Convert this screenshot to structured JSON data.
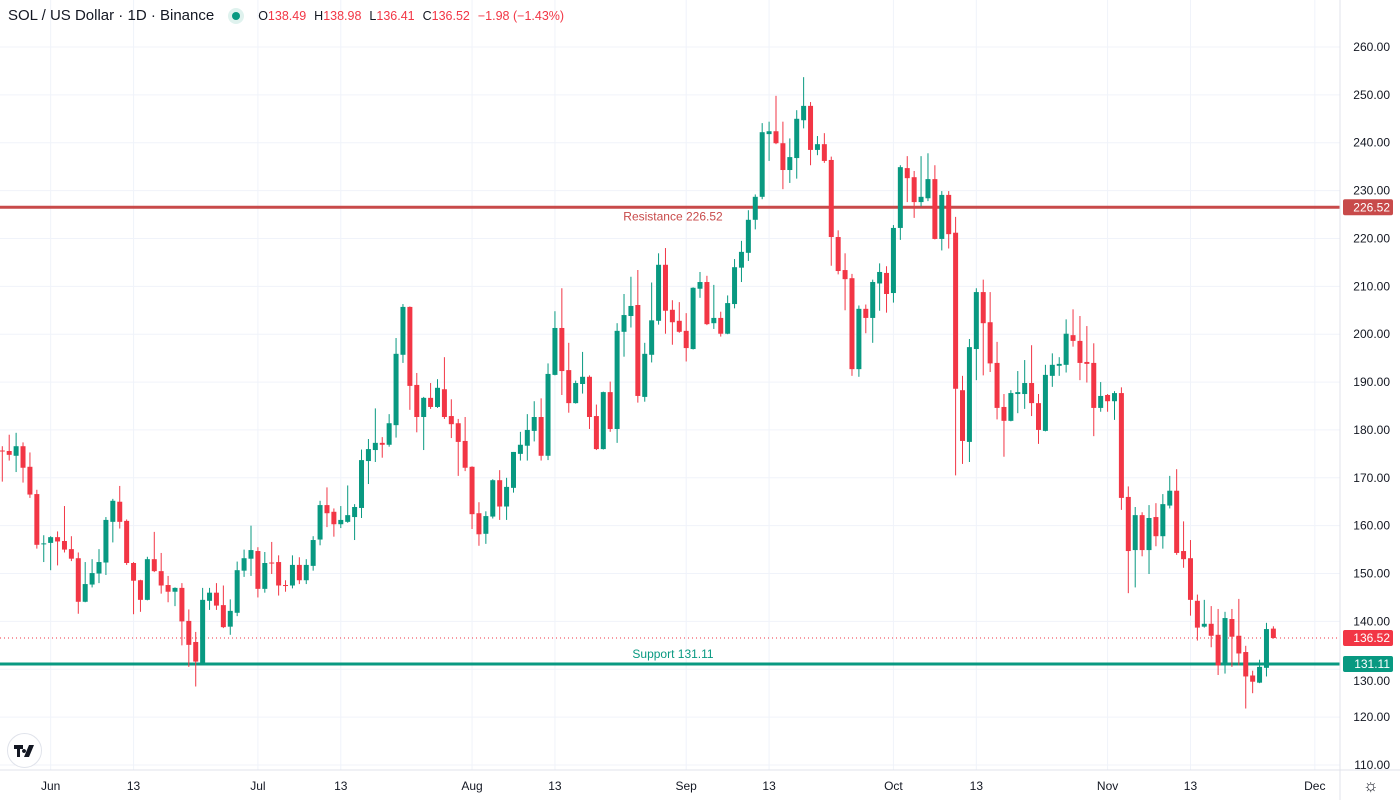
{
  "header": {
    "title": "SOL / US Dollar · 1D · Binance",
    "open_key": "O",
    "open": "138.49",
    "high_key": "H",
    "high": "138.98",
    "low_key": "L",
    "low": "136.41",
    "close_key": "C",
    "close": "136.52",
    "change": "−1.98 (−1.43%)"
  },
  "logo_text": "TV",
  "colors": {
    "up": "#089981",
    "down": "#f23645",
    "resistance": "#c84a4a",
    "support": "#089981",
    "grid": "#f0f3fa",
    "text": "#131722"
  },
  "chart_data": {
    "type": "candlestick",
    "title": "SOL / US Dollar · 1D · Binance",
    "ylim": [
      110,
      260
    ],
    "y_ticks": [
      "110.00",
      "120.00",
      "130.00",
      "140.00",
      "150.00",
      "160.00",
      "170.00",
      "180.00",
      "190.00",
      "200.00",
      "210.00",
      "220.00",
      "230.00",
      "240.00",
      "250.00",
      "260.00"
    ],
    "x_ticks": [
      {
        "label": "Jun",
        "index": 7
      },
      {
        "label": "13",
        "index": 19
      },
      {
        "label": "Jul",
        "index": 37
      },
      {
        "label": "13",
        "index": 49
      },
      {
        "label": "Aug",
        "index": 68
      },
      {
        "label": "13",
        "index": 80
      },
      {
        "label": "Sep",
        "index": 99
      },
      {
        "label": "13",
        "index": 111
      },
      {
        "label": "Oct",
        "index": 129
      },
      {
        "label": "13",
        "index": 141
      },
      {
        "label": "Nov",
        "index": 160
      },
      {
        "label": "13",
        "index": 172
      },
      {
        "label": "Dec",
        "index": 190
      }
    ],
    "ohlc_fields": [
      "open",
      "high",
      "low",
      "close"
    ],
    "ohlc": [
      [
        175.7,
        176.6,
        169.2,
        175.6
      ],
      [
        175.6,
        179.0,
        173.6,
        174.8
      ],
      [
        174.6,
        179.4,
        171.2,
        176.6
      ],
      [
        176.6,
        177.4,
        169.0,
        172.1
      ],
      [
        172.3,
        175.3,
        165.8,
        166.5
      ],
      [
        166.6,
        167.5,
        155.2,
        156.0
      ],
      [
        156.2,
        158.0,
        152.4,
        156.3
      ],
      [
        156.4,
        157.8,
        150.7,
        157.6
      ],
      [
        157.6,
        158.8,
        151.7,
        156.7
      ],
      [
        156.8,
        164.1,
        154.4,
        155.0
      ],
      [
        155.1,
        157.8,
        152.6,
        153.1
      ],
      [
        153.2,
        154.4,
        141.6,
        144.1
      ],
      [
        144.1,
        152.4,
        144.0,
        147.8
      ],
      [
        147.7,
        153.0,
        147.1,
        150.1
      ],
      [
        150.0,
        155.1,
        148.0,
        152.4
      ],
      [
        152.3,
        161.8,
        149.7,
        161.2
      ],
      [
        160.8,
        165.6,
        156.5,
        165.2
      ],
      [
        165.0,
        168.3,
        159.4,
        160.8
      ],
      [
        161.0,
        161.3,
        151.8,
        152.2
      ],
      [
        152.2,
        152.4,
        141.5,
        148.5
      ],
      [
        148.6,
        148.7,
        142.0,
        144.5
      ],
      [
        144.5,
        153.5,
        144.4,
        153.0
      ],
      [
        153.0,
        158.7,
        150.3,
        150.5
      ],
      [
        150.5,
        154.3,
        145.8,
        147.5
      ],
      [
        147.6,
        149.5,
        144.0,
        146.2
      ],
      [
        146.2,
        147.1,
        143.2,
        147.0
      ],
      [
        147.0,
        148.0,
        135.0,
        140.0
      ],
      [
        140.1,
        142.5,
        130.5,
        135.1
      ],
      [
        135.7,
        137.8,
        126.4,
        131.6
      ],
      [
        131.3,
        147.0,
        131.0,
        144.5
      ],
      [
        144.3,
        147.0,
        142.4,
        146.0
      ],
      [
        146.0,
        148.0,
        142.4,
        143.3
      ],
      [
        143.4,
        147.5,
        138.6,
        138.8
      ],
      [
        138.9,
        144.6,
        137.2,
        142.2
      ],
      [
        141.8,
        152.5,
        141.1,
        150.7
      ],
      [
        150.6,
        155.0,
        149.3,
        153.2
      ],
      [
        153.1,
        160.0,
        149.5,
        154.9
      ],
      [
        154.7,
        155.5,
        145.0,
        146.8
      ],
      [
        146.8,
        154.5,
        146.0,
        152.2
      ],
      [
        152.3,
        156.6,
        149.9,
        152.2
      ],
      [
        152.4,
        153.8,
        145.4,
        147.5
      ],
      [
        147.6,
        148.6,
        146.2,
        147.5
      ],
      [
        147.5,
        153.8,
        146.9,
        151.8
      ],
      [
        151.8,
        153.4,
        147.8,
        148.6
      ],
      [
        148.6,
        153.0,
        147.8,
        151.8
      ],
      [
        151.6,
        157.8,
        150.6,
        157.0
      ],
      [
        157.1,
        165.2,
        155.9,
        164.3
      ],
      [
        164.3,
        168.0,
        159.7,
        162.6
      ],
      [
        162.9,
        163.6,
        157.7,
        160.3
      ],
      [
        160.3,
        164.1,
        159.5,
        161.2
      ],
      [
        160.8,
        168.4,
        160.6,
        162.2
      ],
      [
        161.8,
        164.5,
        157.0,
        163.9
      ],
      [
        163.7,
        175.9,
        161.6,
        173.7
      ],
      [
        173.5,
        178.1,
        168.7,
        176.0
      ],
      [
        175.8,
        184.5,
        173.3,
        177.3
      ],
      [
        177.3,
        178.5,
        174.2,
        176.9
      ],
      [
        176.9,
        183.3,
        176.5,
        181.4
      ],
      [
        181.0,
        199.2,
        178.4,
        195.9
      ],
      [
        195.7,
        206.3,
        194.0,
        205.7
      ],
      [
        205.7,
        205.8,
        184.2,
        189.2
      ],
      [
        189.4,
        191.9,
        179.5,
        182.7
      ],
      [
        182.7,
        186.9,
        175.8,
        186.7
      ],
      [
        186.7,
        189.8,
        184.4,
        184.8
      ],
      [
        184.8,
        190.6,
        184.6,
        188.8
      ],
      [
        188.5,
        195.2,
        182.3,
        182.7
      ],
      [
        182.9,
        186.4,
        178.3,
        181.2
      ],
      [
        181.4,
        182.3,
        170.4,
        177.5
      ],
      [
        177.7,
        182.7,
        171.4,
        172.1
      ],
      [
        172.3,
        172.4,
        159.3,
        162.4
      ],
      [
        162.6,
        164.9,
        155.8,
        158.2
      ],
      [
        158.3,
        163.0,
        156.2,
        162.0
      ],
      [
        161.9,
        169.7,
        161.5,
        169.5
      ],
      [
        169.5,
        171.6,
        161.2,
        164.0
      ],
      [
        164.0,
        170.0,
        161.2,
        168.1
      ],
      [
        167.9,
        175.4,
        166.9,
        175.4
      ],
      [
        175.0,
        179.6,
        173.6,
        176.9
      ],
      [
        176.7,
        183.3,
        173.6,
        180.0
      ],
      [
        179.8,
        186.0,
        177.6,
        182.7
      ],
      [
        182.7,
        186.6,
        173.6,
        174.6
      ],
      [
        174.6,
        193.9,
        173.7,
        191.7
      ],
      [
        191.5,
        204.8,
        191.4,
        201.3
      ],
      [
        201.3,
        209.6,
        187.3,
        192.3
      ],
      [
        192.5,
        198.2,
        183.6,
        185.6
      ],
      [
        185.6,
        190.3,
        185.5,
        189.8
      ],
      [
        189.6,
        196.3,
        187.6,
        191.1
      ],
      [
        191.1,
        191.4,
        180.2,
        182.7
      ],
      [
        182.9,
        185.3,
        175.8,
        176.0
      ],
      [
        176.0,
        188.0,
        175.9,
        187.9
      ],
      [
        187.9,
        190.1,
        179.6,
        180.2
      ],
      [
        180.2,
        202.3,
        177.3,
        200.7
      ],
      [
        200.5,
        208.4,
        195.3,
        204.0
      ],
      [
        203.8,
        212.0,
        201.4,
        205.9
      ],
      [
        206.1,
        213.4,
        185.7,
        187.1
      ],
      [
        186.9,
        198.2,
        185.9,
        195.9
      ],
      [
        195.7,
        210.8,
        194.1,
        202.9
      ],
      [
        202.8,
        216.9,
        202.0,
        214.5
      ],
      [
        214.5,
        218.0,
        200.1,
        204.9
      ],
      [
        205.1,
        207.1,
        197.8,
        202.5
      ],
      [
        202.8,
        206.7,
        200.3,
        200.5
      ],
      [
        200.7,
        204.4,
        194.3,
        197.1
      ],
      [
        196.9,
        209.8,
        196.8,
        209.7
      ],
      [
        209.5,
        213.0,
        207.6,
        210.9
      ],
      [
        210.9,
        212.2,
        201.9,
        202.1
      ],
      [
        202.3,
        210.3,
        201.1,
        203.4
      ],
      [
        203.4,
        204.7,
        199.5,
        200.1
      ],
      [
        200.1,
        208.1,
        200.0,
        206.5
      ],
      [
        206.3,
        215.7,
        205.4,
        214.0
      ],
      [
        213.9,
        219.5,
        210.9,
        217.2
      ],
      [
        217.0,
        225.9,
        215.3,
        223.9
      ],
      [
        223.9,
        229.2,
        221.9,
        228.7
      ],
      [
        228.7,
        244.1,
        228.2,
        242.2
      ],
      [
        241.8,
        244.4,
        236.2,
        242.4
      ],
      [
        242.4,
        249.8,
        239.7,
        239.9
      ],
      [
        239.9,
        244.4,
        230.3,
        234.3
      ],
      [
        234.3,
        240.9,
        231.6,
        237.0
      ],
      [
        236.8,
        246.8,
        232.5,
        245.0
      ],
      [
        244.7,
        253.7,
        243.0,
        247.7
      ],
      [
        247.7,
        248.5,
        235.3,
        238.5
      ],
      [
        238.5,
        241.4,
        237.4,
        239.7
      ],
      [
        239.7,
        242.0,
        235.8,
        236.2
      ],
      [
        236.4,
        237.1,
        214.3,
        220.3
      ],
      [
        220.3,
        221.7,
        212.5,
        213.2
      ],
      [
        213.4,
        216.9,
        205.0,
        211.5
      ],
      [
        211.7,
        212.6,
        191.3,
        192.7
      ],
      [
        192.7,
        206.0,
        191.1,
        205.3
      ],
      [
        205.3,
        206.2,
        200.2,
        203.4
      ],
      [
        203.4,
        211.4,
        198.2,
        210.9
      ],
      [
        210.6,
        214.8,
        204.9,
        213.0
      ],
      [
        212.8,
        214.2,
        204.5,
        208.4
      ],
      [
        208.6,
        222.8,
        206.6,
        222.2
      ],
      [
        222.2,
        235.3,
        219.7,
        234.9
      ],
      [
        234.7,
        237.2,
        227.6,
        232.6
      ],
      [
        232.8,
        234.1,
        224.3,
        227.6
      ],
      [
        227.6,
        237.2,
        226.7,
        228.7
      ],
      [
        228.4,
        237.8,
        227.8,
        232.4
      ],
      [
        232.4,
        235.3,
        219.8,
        219.9
      ],
      [
        219.9,
        229.9,
        217.5,
        229.1
      ],
      [
        229.1,
        229.9,
        217.9,
        220.9
      ],
      [
        221.2,
        224.5,
        170.5,
        188.6
      ],
      [
        188.3,
        191.3,
        172.9,
        177.7
      ],
      [
        177.5,
        199.0,
        173.3,
        197.3
      ],
      [
        196.9,
        209.6,
        190.4,
        208.8
      ],
      [
        208.8,
        211.4,
        191.4,
        202.3
      ],
      [
        202.5,
        208.8,
        192.1,
        193.9
      ],
      [
        194.0,
        198.4,
        182.2,
        184.6
      ],
      [
        184.8,
        187.5,
        174.4,
        181.9
      ],
      [
        181.9,
        188.3,
        181.8,
        187.7
      ],
      [
        187.5,
        192.3,
        183.5,
        187.9
      ],
      [
        187.5,
        194.6,
        184.4,
        189.8
      ],
      [
        189.8,
        197.7,
        182.9,
        185.6
      ],
      [
        185.6,
        187.5,
        177.1,
        180.0
      ],
      [
        179.8,
        193.6,
        179.7,
        191.5
      ],
      [
        191.3,
        196.0,
        189.0,
        193.6
      ],
      [
        193.4,
        195.2,
        191.3,
        193.8
      ],
      [
        193.6,
        203.1,
        192.0,
        200.1
      ],
      [
        199.8,
        205.2,
        197.4,
        198.6
      ],
      [
        198.6,
        203.8,
        190.4,
        194.0
      ],
      [
        194.2,
        201.7,
        189.9,
        193.8
      ],
      [
        194.0,
        198.1,
        178.7,
        184.6
      ],
      [
        184.6,
        190.0,
        183.8,
        187.1
      ],
      [
        187.3,
        187.5,
        183.8,
        186.0
      ],
      [
        186.0,
        188.1,
        182.1,
        187.7
      ],
      [
        187.7,
        188.9,
        163.3,
        165.8
      ],
      [
        166.0,
        168.2,
        145.9,
        154.7
      ],
      [
        154.9,
        163.9,
        147.1,
        162.2
      ],
      [
        162.2,
        162.8,
        153.6,
        154.9
      ],
      [
        154.9,
        164.3,
        149.9,
        161.6
      ],
      [
        161.8,
        164.7,
        155.7,
        157.8
      ],
      [
        157.8,
        166.6,
        155.2,
        164.5
      ],
      [
        164.2,
        170.4,
        163.6,
        167.3
      ],
      [
        167.3,
        171.8,
        153.9,
        154.3
      ],
      [
        154.7,
        160.9,
        151.2,
        153.0
      ],
      [
        153.2,
        157.0,
        141.2,
        144.5
      ],
      [
        144.3,
        145.6,
        136.0,
        138.7
      ],
      [
        138.9,
        144.5,
        138.7,
        139.5
      ],
      [
        139.5,
        143.2,
        134.6,
        137.0
      ],
      [
        137.2,
        142.6,
        128.8,
        130.8
      ],
      [
        131.0,
        142.0,
        129.1,
        140.7
      ],
      [
        140.5,
        142.6,
        130.5,
        136.8
      ],
      [
        137.0,
        144.7,
        130.8,
        133.3
      ],
      [
        133.6,
        134.9,
        121.8,
        128.5
      ],
      [
        128.7,
        129.7,
        125.0,
        127.4
      ],
      [
        127.2,
        132.0,
        127.1,
        130.5
      ],
      [
        130.3,
        139.7,
        128.5,
        138.4
      ],
      [
        138.49,
        138.98,
        136.41,
        136.52
      ]
    ],
    "last_price": {
      "value": 136.52,
      "label": "136.52"
    },
    "levels": [
      {
        "name": "resistance",
        "value": 226.52,
        "text": "Resistance 226.52",
        "axis_label": "226.52"
      },
      {
        "name": "support",
        "value": 131.11,
        "text": "Support 131.11",
        "axis_label": "131.11"
      }
    ]
  }
}
